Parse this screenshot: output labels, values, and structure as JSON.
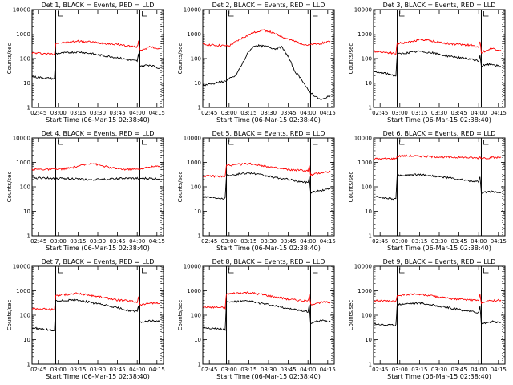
{
  "colors": {
    "events": "#000000",
    "lld": "#ff0000",
    "background": "#ffffff",
    "axes": "#000000"
  },
  "chart_data": [
    {
      "type": "line",
      "title": "Det 1, BLACK = Events, RED = LLD",
      "xlabel": "Start Time (06-Mar-15 02:38:40)",
      "ylabel": "Counts/sec",
      "xlim": [
        "02:40",
        "04:20"
      ],
      "ylim": [
        1,
        10000
      ],
      "yscale": "log",
      "xticks": [
        "02:45",
        "03:00",
        "03:15",
        "03:30",
        "03:45",
        "04:00",
        "04:15"
      ],
      "yticks": [
        "1",
        "10",
        "100",
        "1000",
        "10000"
      ],
      "vlines_solid": [
        "02:58",
        "04:02"
      ],
      "vlines_dotted": [
        "04:20"
      ],
      "series": [
        {
          "color": "#ff0000",
          "x": [
            "02:40",
            "02:50",
            "02:57",
            "02:58",
            "03:05",
            "03:15",
            "03:25",
            "03:35",
            "03:45",
            "03:55",
            "04:00",
            "04:01",
            "04:02",
            "04:10",
            "04:17"
          ],
          "values": [
            170,
            160,
            150,
            430,
            450,
            520,
            480,
            420,
            380,
            320,
            300,
            500,
            220,
            300,
            250
          ]
        },
        {
          "color": "#000000",
          "x": [
            "02:40",
            "02:50",
            "02:57",
            "02:58",
            "03:05",
            "03:15",
            "03:25",
            "03:35",
            "03:45",
            "03:55",
            "04:00",
            "04:01",
            "04:02",
            "04:10",
            "04:17"
          ],
          "values": [
            18,
            16,
            15,
            160,
            170,
            190,
            160,
            130,
            110,
            85,
            80,
            150,
            50,
            55,
            40
          ]
        }
      ]
    },
    {
      "type": "line",
      "title": "Det 2, BLACK = Events, RED = LLD",
      "xlabel": "Start Time (06-Mar-15 02:38:40)",
      "ylabel": "Counts/sec",
      "xlim": [
        "02:40",
        "04:20"
      ],
      "ylim": [
        1,
        10000
      ],
      "yscale": "log",
      "xticks": [
        "02:45",
        "03:00",
        "03:15",
        "03:30",
        "03:45",
        "04:00",
        "04:15"
      ],
      "yticks": [
        "1",
        "10",
        "100",
        "1000",
        "10000"
      ],
      "vlines_solid": [
        "02:58",
        "04:02"
      ],
      "vlines_dotted": [
        "04:20"
      ],
      "series": [
        {
          "color": "#ff0000",
          "x": [
            "02:40",
            "02:50",
            "03:00",
            "03:10",
            "03:20",
            "03:25",
            "03:30",
            "03:40",
            "03:50",
            "04:00",
            "04:10",
            "04:17"
          ],
          "values": [
            380,
            350,
            330,
            700,
            1200,
            1500,
            1300,
            800,
            500,
            350,
            420,
            520
          ]
        },
        {
          "color": "#000000",
          "x": [
            "02:40",
            "02:50",
            "02:57",
            "03:05",
            "03:10",
            "03:15",
            "03:20",
            "03:30",
            "03:35",
            "03:40",
            "03:45",
            "03:50",
            "03:55",
            "04:00",
            "04:05",
            "04:10",
            "04:17"
          ],
          "values": [
            8,
            10,
            12,
            20,
            60,
            200,
            350,
            300,
            250,
            300,
            120,
            30,
            15,
            5,
            3,
            2,
            3
          ]
        }
      ]
    },
    {
      "type": "line",
      "title": "Det 3, BLACK = Events, RED = LLD",
      "xlabel": "Start Time (06-Mar-15 02:38:40)",
      "ylabel": "Counts/sec",
      "xlim": [
        "02:40",
        "04:20"
      ],
      "ylim": [
        1,
        10000
      ],
      "yscale": "log",
      "xticks": [
        "02:45",
        "03:00",
        "03:15",
        "03:30",
        "03:45",
        "04:00",
        "04:15"
      ],
      "yticks": [
        "1",
        "10",
        "100",
        "1000",
        "10000"
      ],
      "vlines_solid": [
        "02:58",
        "04:02"
      ],
      "vlines_dotted": [
        "04:20"
      ],
      "series": [
        {
          "color": "#ff0000",
          "x": [
            "02:40",
            "02:50",
            "02:57",
            "02:58",
            "03:05",
            "03:15",
            "03:25",
            "03:35",
            "03:45",
            "03:55",
            "04:00",
            "04:01",
            "04:02",
            "04:10",
            "04:17"
          ],
          "values": [
            200,
            180,
            160,
            420,
            450,
            600,
            520,
            420,
            380,
            350,
            300,
            500,
            180,
            260,
            220
          ]
        },
        {
          "color": "#000000",
          "x": [
            "02:40",
            "02:50",
            "02:57",
            "02:58",
            "03:05",
            "03:15",
            "03:25",
            "03:35",
            "03:45",
            "03:55",
            "04:00",
            "04:01",
            "04:02",
            "04:10",
            "04:17"
          ],
          "values": [
            28,
            24,
            20,
            150,
            170,
            200,
            170,
            130,
            110,
            90,
            80,
            140,
            50,
            60,
            45
          ]
        }
      ]
    },
    {
      "type": "line",
      "title": "Det 4, BLACK = Events, RED = LLD",
      "xlabel": "Start Time (06-Mar-15 02:38:40)",
      "ylabel": "Counts/sec",
      "xlim": [
        "02:40",
        "04:20"
      ],
      "ylim": [
        1,
        10000
      ],
      "yscale": "log",
      "xticks": [
        "02:45",
        "03:00",
        "03:15",
        "03:30",
        "03:45",
        "04:00",
        "04:15"
      ],
      "yticks": [
        "1",
        "10",
        "100",
        "1000",
        "10000"
      ],
      "vlines_solid": [
        "02:58",
        "04:02"
      ],
      "vlines_dotted": [
        "04:20"
      ],
      "series": [
        {
          "color": "#ff0000",
          "x": [
            "02:40",
            "02:50",
            "03:00",
            "03:10",
            "03:20",
            "03:25",
            "03:30",
            "03:40",
            "03:50",
            "04:00",
            "04:10",
            "04:17"
          ],
          "values": [
            520,
            520,
            520,
            600,
            800,
            950,
            800,
            600,
            520,
            520,
            650,
            700
          ]
        },
        {
          "color": "#000000",
          "x": [
            "02:40",
            "02:50",
            "03:00",
            "03:10",
            "03:20",
            "03:25",
            "03:30",
            "03:40",
            "03:50",
            "04:00",
            "04:10",
            "04:17"
          ],
          "values": [
            230,
            230,
            220,
            220,
            200,
            190,
            200,
            210,
            220,
            220,
            220,
            210
          ]
        }
      ]
    },
    {
      "type": "line",
      "title": "Det 5, BLACK = Events, RED = LLD",
      "xlabel": "Start Time (06-Mar-15 02:38:40)",
      "ylabel": "Counts/sec",
      "xlim": [
        "02:40",
        "04:20"
      ],
      "ylim": [
        1,
        10000
      ],
      "yscale": "log",
      "xticks": [
        "02:45",
        "03:00",
        "03:15",
        "03:30",
        "03:45",
        "04:00",
        "04:15"
      ],
      "yticks": [
        "1",
        "10",
        "100",
        "1000",
        "10000"
      ],
      "vlines_solid": [
        "02:58",
        "04:02"
      ],
      "vlines_dotted": [
        "04:20"
      ],
      "series": [
        {
          "color": "#ff0000",
          "x": [
            "02:40",
            "02:50",
            "02:57",
            "02:58",
            "03:05",
            "03:15",
            "03:25",
            "03:35",
            "03:45",
            "03:55",
            "04:00",
            "04:01",
            "04:02",
            "04:10",
            "04:17"
          ],
          "values": [
            280,
            270,
            260,
            750,
            800,
            900,
            750,
            600,
            500,
            480,
            450,
            700,
            300,
            380,
            420
          ]
        },
        {
          "color": "#000000",
          "x": [
            "02:40",
            "02:50",
            "02:57",
            "02:58",
            "03:05",
            "03:15",
            "03:25",
            "03:35",
            "03:45",
            "03:55",
            "04:00",
            "04:01",
            "04:02",
            "04:10",
            "04:17"
          ],
          "values": [
            40,
            36,
            34,
            300,
            320,
            380,
            300,
            240,
            200,
            160,
            150,
            250,
            60,
            70,
            85
          ]
        }
      ]
    },
    {
      "type": "line",
      "title": "Det 6, BLACK = Events, RED = LLD",
      "xlabel": "Start Time (06-Mar-15 02:38:40)",
      "ylabel": "Counts/sec",
      "xlim": [
        "02:40",
        "04:20"
      ],
      "ylim": [
        1,
        10000
      ],
      "yscale": "log",
      "xticks": [
        "02:45",
        "03:00",
        "03:15",
        "03:30",
        "03:45",
        "04:00",
        "04:15"
      ],
      "yticks": [
        "1",
        "10",
        "100",
        "1000",
        "10000"
      ],
      "vlines_solid": [
        "02:58",
        "04:02"
      ],
      "vlines_dotted": [
        "04:20"
      ],
      "series": [
        {
          "color": "#ff0000",
          "x": [
            "02:40",
            "02:50",
            "02:57",
            "02:58",
            "03:05",
            "03:15",
            "03:25",
            "03:35",
            "03:45",
            "03:55",
            "04:00",
            "04:01",
            "04:02",
            "04:10",
            "04:17"
          ],
          "values": [
            1400,
            1400,
            1400,
            1800,
            1850,
            1800,
            1700,
            1650,
            1600,
            1550,
            1500,
            1700,
            1500,
            1550,
            1600
          ]
        },
        {
          "color": "#000000",
          "x": [
            "02:40",
            "02:50",
            "02:57",
            "02:58",
            "03:05",
            "03:15",
            "03:25",
            "03:35",
            "03:45",
            "03:55",
            "04:00",
            "04:01",
            "04:02",
            "04:10",
            "04:17"
          ],
          "values": [
            40,
            35,
            32,
            280,
            300,
            320,
            280,
            240,
            200,
            170,
            160,
            260,
            55,
            65,
            60
          ]
        }
      ]
    },
    {
      "type": "line",
      "title": "Det 7, BLACK = Events, RED = LLD",
      "xlabel": "Start Time (06-Mar-15 02:38:40)",
      "ylabel": "Counts/sec",
      "xlim": [
        "02:40",
        "04:20"
      ],
      "ylim": [
        1,
        10000
      ],
      "yscale": "log",
      "xticks": [
        "02:45",
        "03:00",
        "03:15",
        "03:30",
        "03:45",
        "04:00",
        "04:15"
      ],
      "yticks": [
        "1",
        "10",
        "100",
        "1000",
        "10000"
      ],
      "vlines_solid": [
        "02:58",
        "04:02"
      ],
      "vlines_dotted": [
        "04:20"
      ],
      "series": [
        {
          "color": "#ff0000",
          "x": [
            "02:40",
            "02:50",
            "02:57",
            "02:58",
            "03:05",
            "03:15",
            "03:25",
            "03:35",
            "03:45",
            "03:55",
            "04:00",
            "04:01",
            "04:02",
            "04:10",
            "04:17"
          ],
          "values": [
            190,
            180,
            170,
            650,
            700,
            780,
            650,
            520,
            420,
            380,
            340,
            600,
            260,
            320,
            300
          ]
        },
        {
          "color": "#000000",
          "x": [
            "02:40",
            "02:50",
            "02:57",
            "02:58",
            "03:05",
            "03:15",
            "03:25",
            "03:35",
            "03:45",
            "03:55",
            "04:00",
            "04:01",
            "04:02",
            "04:10",
            "04:17"
          ],
          "values": [
            30,
            26,
            24,
            380,
            400,
            420,
            330,
            260,
            200,
            150,
            140,
            250,
            50,
            60,
            55
          ]
        }
      ]
    },
    {
      "type": "line",
      "title": "Det 8, BLACK = Events, RED = LLD",
      "xlabel": "Start Time (06-Mar-15 02:38:40)",
      "ylabel": "Counts/sec",
      "xlim": [
        "02:40",
        "04:20"
      ],
      "ylim": [
        1,
        10000
      ],
      "yscale": "log",
      "xticks": [
        "02:45",
        "03:00",
        "03:15",
        "03:30",
        "03:45",
        "04:00",
        "04:15"
      ],
      "yticks": [
        "1",
        "10",
        "100",
        "1000",
        "10000"
      ],
      "vlines_solid": [
        "02:58",
        "04:02"
      ],
      "vlines_dotted": [
        "04:20"
      ],
      "series": [
        {
          "color": "#ff0000",
          "x": [
            "02:40",
            "02:50",
            "02:57",
            "02:58",
            "03:05",
            "03:15",
            "03:25",
            "03:35",
            "03:45",
            "03:55",
            "04:00",
            "04:01",
            "04:02",
            "04:10",
            "04:17"
          ],
          "values": [
            220,
            210,
            200,
            750,
            800,
            850,
            700,
            560,
            450,
            400,
            380,
            650,
            280,
            340,
            330
          ]
        },
        {
          "color": "#000000",
          "x": [
            "02:40",
            "02:50",
            "02:57",
            "02:58",
            "03:05",
            "03:15",
            "03:25",
            "03:35",
            "03:45",
            "03:55",
            "04:00",
            "04:01",
            "04:02",
            "04:10",
            "04:17"
          ],
          "values": [
            32,
            28,
            26,
            340,
            360,
            380,
            300,
            240,
            190,
            150,
            140,
            250,
            48,
            60,
            55
          ]
        }
      ]
    },
    {
      "type": "line",
      "title": "Det 9, BLACK = Events, RED = LLD",
      "xlabel": "Start Time (06-Mar-15 02:38:40)",
      "ylabel": "Counts/sec",
      "xlim": [
        "02:40",
        "04:20"
      ],
      "ylim": [
        1,
        10000
      ],
      "yscale": "log",
      "xticks": [
        "02:45",
        "03:00",
        "03:15",
        "03:30",
        "03:45",
        "04:00",
        "04:15"
      ],
      "yticks": [
        "1",
        "10",
        "100",
        "1000",
        "10000"
      ],
      "vlines_solid": [
        "02:58",
        "04:02"
      ],
      "vlines_dotted": [
        "04:20"
      ],
      "series": [
        {
          "color": "#ff0000",
          "x": [
            "02:40",
            "02:50",
            "02:57",
            "02:58",
            "03:05",
            "03:15",
            "03:25",
            "03:35",
            "03:45",
            "03:55",
            "04:00",
            "04:01",
            "04:02",
            "04:10",
            "04:17"
          ],
          "values": [
            400,
            380,
            360,
            650,
            700,
            720,
            600,
            500,
            450,
            420,
            400,
            700,
            330,
            400,
            420
          ]
        },
        {
          "color": "#000000",
          "x": [
            "02:40",
            "02:50",
            "02:57",
            "02:58",
            "03:05",
            "03:15",
            "03:25",
            "03:35",
            "03:45",
            "03:55",
            "04:00",
            "04:01",
            "04:02",
            "04:10",
            "04:17"
          ],
          "values": [
            45,
            40,
            38,
            280,
            300,
            320,
            260,
            210,
            170,
            140,
            130,
            230,
            45,
            55,
            50
          ]
        }
      ]
    }
  ]
}
